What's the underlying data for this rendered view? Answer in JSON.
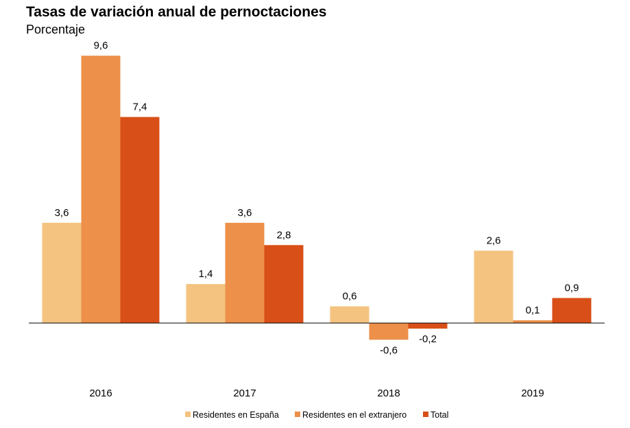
{
  "chart_data": {
    "type": "bar",
    "title": "Tasas de variación anual de pernoctaciones",
    "subtitle": "Porcentaje",
    "xlabel": "",
    "ylabel": "",
    "categories": [
      "2016",
      "2017",
      "2018",
      "2019"
    ],
    "series": [
      {
        "name": "Residentes en España",
        "color": "#F3C37F",
        "values": [
          3.6,
          1.4,
          0.6,
          2.6
        ],
        "labels": [
          "3,6",
          "1,4",
          "0,6",
          "2,6"
        ]
      },
      {
        "name": "Residentes en el extranjero",
        "color": "#EC904A",
        "values": [
          9.6,
          3.6,
          -0.6,
          0.1
        ],
        "labels": [
          "9,6",
          "3,6",
          "-0,6",
          "0,1"
        ]
      },
      {
        "name": "Total",
        "color": "#D94F18",
        "values": [
          7.4,
          2.8,
          -0.2,
          0.9
        ],
        "labels": [
          "7,4",
          "2,8",
          "-0,2",
          "0,9"
        ]
      }
    ],
    "ylim": [
      -2.4,
      11.0
    ],
    "grid": false,
    "legend_position": "bottom-center"
  }
}
